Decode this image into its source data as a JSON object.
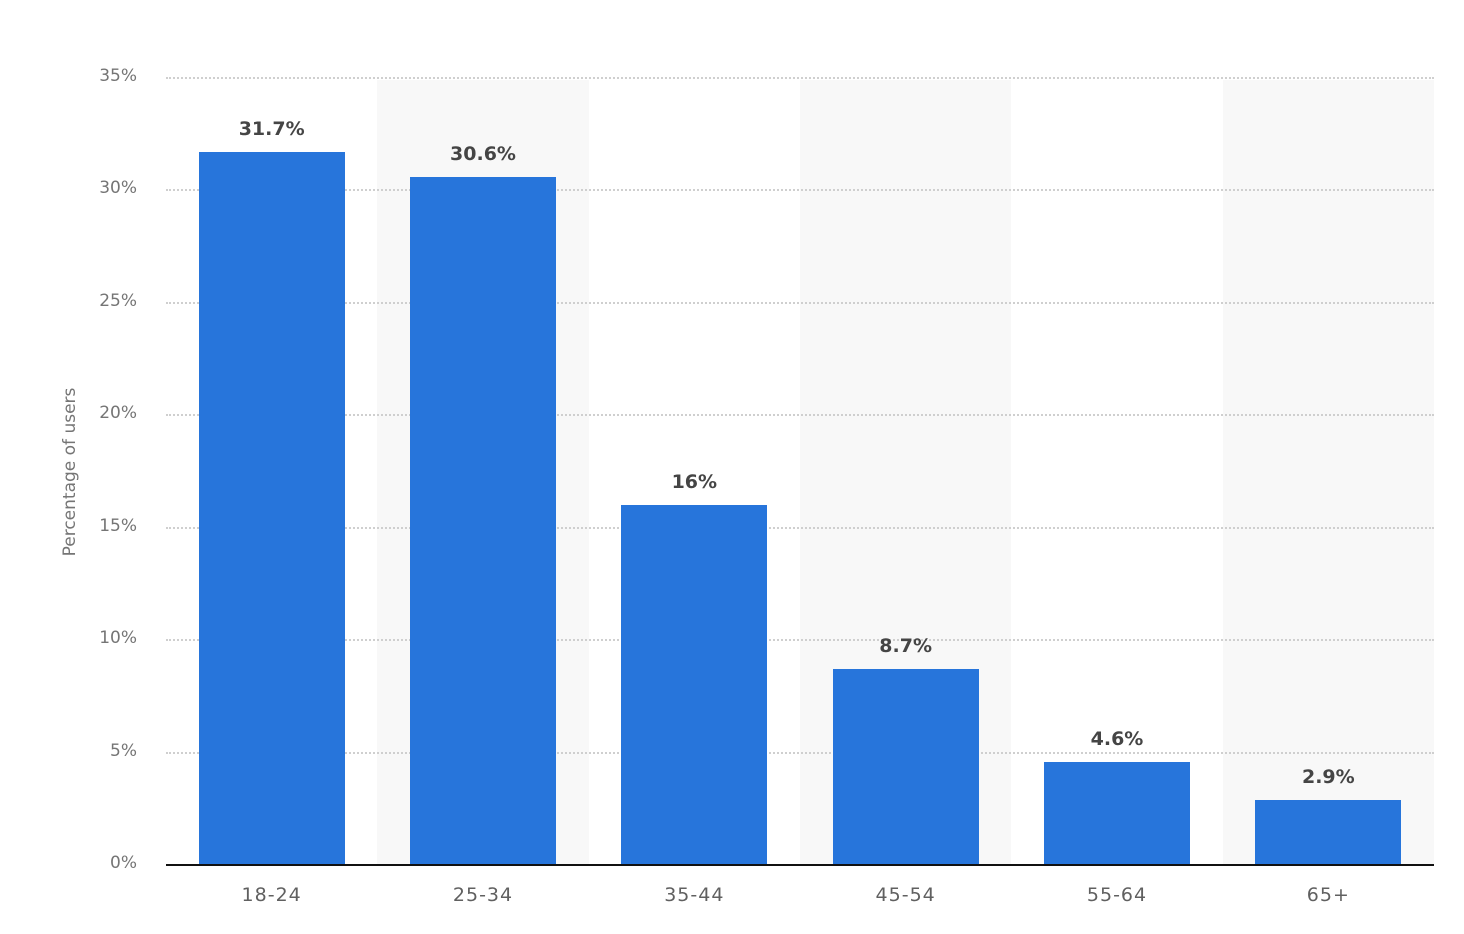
{
  "chart_data": {
    "type": "bar",
    "title": "",
    "xlabel": "",
    "ylabel": "Percentage of users",
    "categories": [
      "18-24",
      "25-34",
      "35-44",
      "45-54",
      "55-64",
      "65+"
    ],
    "values": [
      31.7,
      30.6,
      16,
      8.7,
      4.6,
      2.9
    ],
    "value_labels": [
      "31.7%",
      "30.6%",
      "16%",
      "8.7%",
      "4.6%",
      "2.9%"
    ],
    "ylim": [
      0,
      35
    ],
    "yticks": [
      0,
      5,
      10,
      15,
      20,
      25,
      30,
      35
    ],
    "ytick_labels": [
      "0%",
      "5%",
      "10%",
      "15%",
      "20%",
      "25%",
      "30%",
      "35%"
    ],
    "grid": true,
    "legend": null,
    "bar_color": "#2775db",
    "band_color": "#f8f8f8"
  }
}
